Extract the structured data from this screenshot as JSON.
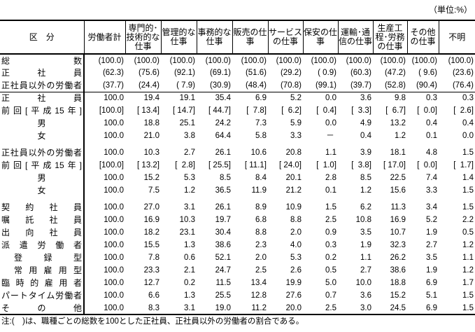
{
  "unit": "（単位:%）",
  "columns": [
    "区　分",
    "労働者計",
    "専門的･技術的な仕事",
    "管理的な仕事",
    "事務的な仕事",
    "販売の仕事",
    "サービスの仕事",
    "保安の仕事",
    "運輸･通信の仕事",
    "生産工程･労務の仕事",
    "その他の仕事",
    "不明"
  ],
  "sections": [
    [
      {
        "label": "総数",
        "style": "justify",
        "values": [
          "(100.0)",
          "(100.0)",
          "(100.0)",
          "(100.0)",
          "(100.0)",
          "(100.0)",
          "(100.0)",
          "(100.0)",
          "(100.0)",
          "(100.0)",
          "(100.0)"
        ]
      },
      {
        "label": "正社員",
        "style": "justify",
        "values": [
          "(62.3)",
          "(75.6)",
          "(92.1)",
          "(69.1)",
          "(51.6)",
          "(29.2)",
          "( 0.9)",
          "(60.3)",
          "(47.2)",
          "( 9.6)",
          "(23.6)"
        ]
      },
      {
        "label": "正社員以外の労働者",
        "style": "justify",
        "values": [
          "(37.7)",
          "(24.4)",
          "( 7.9)",
          "(30.9)",
          "(48.4)",
          "(70.8)",
          "(99.1)",
          "(39.7)",
          "(52.8)",
          "(90.4)",
          "(76.4)"
        ]
      }
    ],
    [
      {
        "label": "正社員",
        "style": "justify",
        "values": [
          "100.0",
          "19.4",
          "19.1",
          "35.4",
          "6.9",
          "5.2",
          "0.0",
          "3.6",
          "9.8",
          "0.3",
          "0.3"
        ]
      },
      {
        "label": "前回[平成15年]",
        "style": "justify",
        "values": [
          "[100.0]",
          "[ 13.4]",
          "[ 14.7]",
          "[ 44.7]",
          "[  7.8]",
          "[  6.2]",
          "[  0.4]",
          "[  3.3]",
          "[  6.7]",
          "[  0.0]",
          "[  2.6]"
        ]
      },
      {
        "label": "男",
        "style": "center",
        "values": [
          "100.0",
          "18.8",
          "25.1",
          "24.2",
          "7.3",
          "5.9",
          "0.0",
          "4.9",
          "13.2",
          "0.4",
          "0.4"
        ]
      },
      {
        "label": "女",
        "style": "center",
        "values": [
          "100.0",
          "21.0",
          "3.8",
          "64.4",
          "5.8",
          "3.3",
          "－ ",
          "0.4",
          "1.2",
          "0.1",
          "0.0"
        ]
      }
    ],
    [
      {
        "label": "正社員以外の労働者",
        "style": "justify",
        "values": [
          "100.0",
          "10.3",
          "2.7",
          "26.1",
          "10.6",
          "20.8",
          "1.1",
          "3.9",
          "18.1",
          "4.8",
          "1.5"
        ]
      },
      {
        "label": "前回[平成15年]",
        "style": "justify",
        "values": [
          "[100.0]",
          "[ 13.2]",
          "[  2.8]",
          "[ 25.5]",
          "[ 11.1]",
          "[ 24.0]",
          "[  1.0]",
          "[  3.8]",
          "[ 17.0]",
          "[  0.0]",
          "[  1.7]"
        ]
      },
      {
        "label": "男",
        "style": "center",
        "values": [
          "100.0",
          "15.2",
          "5.3",
          "8.5",
          "8.4",
          "20.1",
          "2.8",
          "8.5",
          "22.5",
          "7.4",
          "1.4"
        ]
      },
      {
        "label": "女",
        "style": "center",
        "values": [
          "100.0",
          "7.5",
          "1.2",
          "36.5",
          "11.9",
          "21.2",
          "0.1",
          "1.2",
          "15.6",
          "3.3",
          "1.5"
        ]
      }
    ],
    [
      {
        "label": "契約社員",
        "style": "justify",
        "values": [
          "100.0",
          "27.0",
          "3.1",
          "26.1",
          "8.9",
          "10.9",
          "1.5",
          "6.2",
          "11.3",
          "3.4",
          "1.5"
        ]
      },
      {
        "label": "嘱託社員",
        "style": "justify",
        "values": [
          "100.0",
          "16.9",
          "10.3",
          "19.7",
          "6.8",
          "8.8",
          "2.5",
          "10.8",
          "16.9",
          "5.2",
          "2.2"
        ]
      },
      {
        "label": "出向社員",
        "style": "justify",
        "values": [
          "100.0",
          "18.2",
          "23.1",
          "30.4",
          "8.8",
          "2.0",
          "0.9",
          "3.5",
          "10.7",
          "1.9",
          "0.5"
        ]
      },
      {
        "label": "派遣労働者",
        "style": "justify",
        "values": [
          "100.0",
          "15.5",
          "1.3",
          "38.6",
          "2.3",
          "4.0",
          "0.3",
          "1.9",
          "32.3",
          "2.7",
          "1.2"
        ]
      },
      {
        "label": "登録型",
        "style": "indent",
        "values": [
          "100.0",
          "7.8",
          "0.6",
          "52.1",
          "2.0",
          "5.3",
          "0.2",
          "1.1",
          "26.2",
          "3.5",
          "1.1"
        ]
      },
      {
        "label": "常用雇用型",
        "style": "indent",
        "values": [
          "100.0",
          "23.3",
          "2.1",
          "24.7",
          "2.5",
          "2.6",
          "0.5",
          "2.7",
          "38.6",
          "1.9",
          "1.2"
        ]
      },
      {
        "label": "臨時的雇用者",
        "style": "justify",
        "values": [
          "100.0",
          "12.7",
          "0.2",
          "11.5",
          "13.4",
          "19.9",
          "5.0",
          "10.0",
          "18.8",
          "6.9",
          "1.7"
        ]
      },
      {
        "label": "パートタイム労働者",
        "style": "justify",
        "values": [
          "100.0",
          "6.6",
          "1.3",
          "25.5",
          "12.8",
          "27.6",
          "0.7",
          "3.6",
          "15.2",
          "5.1",
          "1.5"
        ]
      },
      {
        "label": "その他",
        "style": "justify",
        "values": [
          "100.0",
          "8.3",
          "3.1",
          "19.0",
          "11.2",
          "20.0",
          "2.5",
          "3.0",
          "24.5",
          "6.9",
          "1.5"
        ]
      }
    ]
  ],
  "note": "注:(　)は、職種ごとの総数を100とした正社員、正社員以外の労働者の割合である。"
}
